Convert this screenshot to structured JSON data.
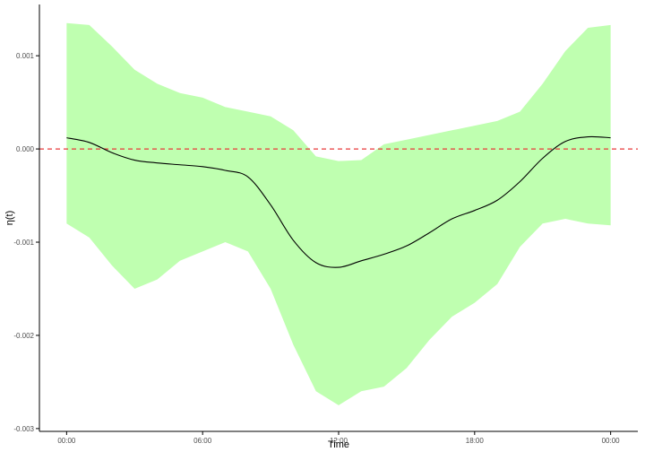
{
  "chart_data": {
    "type": "line",
    "title": "",
    "xlabel": "Time",
    "ylabel": "η(t)",
    "x_ticks": [
      "00:00",
      "06:00",
      "12:00",
      "18:00",
      "00:00"
    ],
    "x_tick_hours": [
      0,
      6,
      12,
      18,
      24
    ],
    "y_ticks": [
      0.001,
      0.0,
      -0.001,
      -0.002,
      -0.003
    ],
    "y_tick_labels": [
      "0.001",
      "0.000",
      "-0.001",
      "-0.002",
      "-0.003"
    ],
    "xlim": [
      -1.2,
      25.2
    ],
    "ylim": [
      -0.00303,
      0.00155
    ],
    "grid": false,
    "reference_line": {
      "y": 0.0,
      "style": "dashed",
      "color": "#e8393a"
    },
    "colors": {
      "band": "#bfffb0",
      "line": "#000000",
      "axis": "#000000"
    },
    "series": [
      {
        "x": [
          0,
          1,
          2,
          3,
          4,
          5,
          6,
          7,
          8,
          9,
          10,
          11,
          12,
          13,
          14,
          15,
          16,
          17,
          18,
          19,
          20,
          21,
          22,
          23,
          24
        ],
        "y": [
          0.00012,
          7e-05,
          -4e-05,
          -0.00012,
          -0.00015,
          -0.00017,
          -0.00019,
          -0.00023,
          -0.0003,
          -0.0006,
          -0.00098,
          -0.00122,
          -0.00127,
          -0.0012,
          -0.00113,
          -0.00104,
          -0.0009,
          -0.00075,
          -0.00066,
          -0.00055,
          -0.00035,
          -0.0001,
          8e-05,
          0.00013,
          0.00012
        ],
        "lower": [
          -0.0008,
          -0.00095,
          -0.00125,
          -0.0015,
          -0.0014,
          -0.0012,
          -0.0011,
          -0.001,
          -0.0011,
          -0.0015,
          -0.0021,
          -0.0026,
          -0.00275,
          -0.0026,
          -0.00255,
          -0.00235,
          -0.00205,
          -0.0018,
          -0.00165,
          -0.00145,
          -0.00105,
          -0.0008,
          -0.00075,
          -0.0008,
          -0.00082
        ],
        "upper": [
          0.00135,
          0.00133,
          0.0011,
          0.00085,
          0.0007,
          0.0006,
          0.00055,
          0.00045,
          0.0004,
          0.00035,
          0.0002,
          -8e-05,
          -0.00013,
          -0.00012,
          5e-05,
          0.0001,
          0.00015,
          0.0002,
          0.00025,
          0.0003,
          0.0004,
          0.0007,
          0.00105,
          0.0013,
          0.00133
        ]
      }
    ]
  }
}
